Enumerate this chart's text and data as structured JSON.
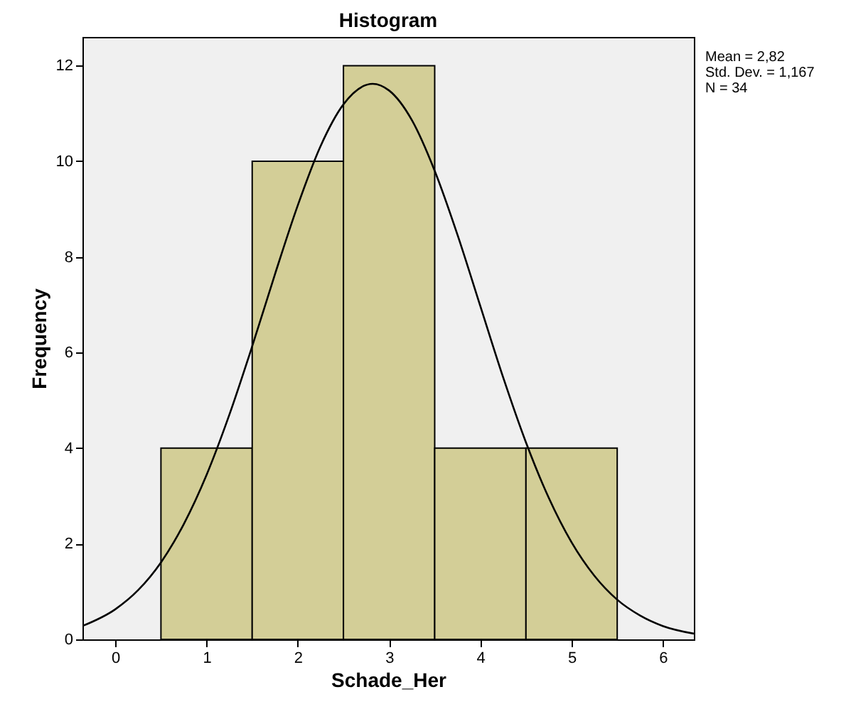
{
  "chart_data": {
    "type": "histogram",
    "title": "Histogram",
    "xlabel": "Schade_Her",
    "ylabel": "Frequency",
    "bins": [
      0.5,
      1.5,
      2.5,
      3.5,
      4.5,
      5.5
    ],
    "values": [
      4,
      10,
      12,
      4,
      4
    ],
    "color": "#d3ce97",
    "series": [
      {
        "type": "line",
        "color": "#000000",
        "x": [
          -0.36,
          0,
          0.25,
          0.5,
          0.75,
          1.0,
          1.25,
          1.5,
          1.75,
          2.0,
          2.25,
          2.5,
          2.82,
          3.0,
          3.25,
          3.5,
          3.75,
          4.0,
          4.25,
          4.5,
          4.75,
          5.0,
          5.25,
          5.5,
          5.75,
          6.0,
          6.34
        ],
        "values": [
          0.28,
          0.63,
          1.03,
          1.61,
          2.41,
          3.44,
          4.7,
          6.13,
          7.64,
          9.08,
          10.32,
          11.19,
          11.62,
          11.48,
          10.86,
          9.8,
          8.46,
          6.97,
          5.48,
          4.12,
          2.96,
          2.03,
          1.33,
          0.83,
          0.5,
          0.28,
          0.12
        ]
      }
    ],
    "xlim": [
      -0.36,
      6.34
    ],
    "xticks": [
      0,
      1,
      2,
      3,
      4,
      5,
      6
    ],
    "ylim": [
      0,
      12.6
    ],
    "yticks": [
      0,
      2,
      4,
      6,
      8,
      10,
      12
    ],
    "grid": false,
    "line_style": "solid",
    "marker": "none",
    "annotations": [
      "Mean = 2,82",
      "Std. Dev. = 1,167",
      "N = 34"
    ]
  }
}
